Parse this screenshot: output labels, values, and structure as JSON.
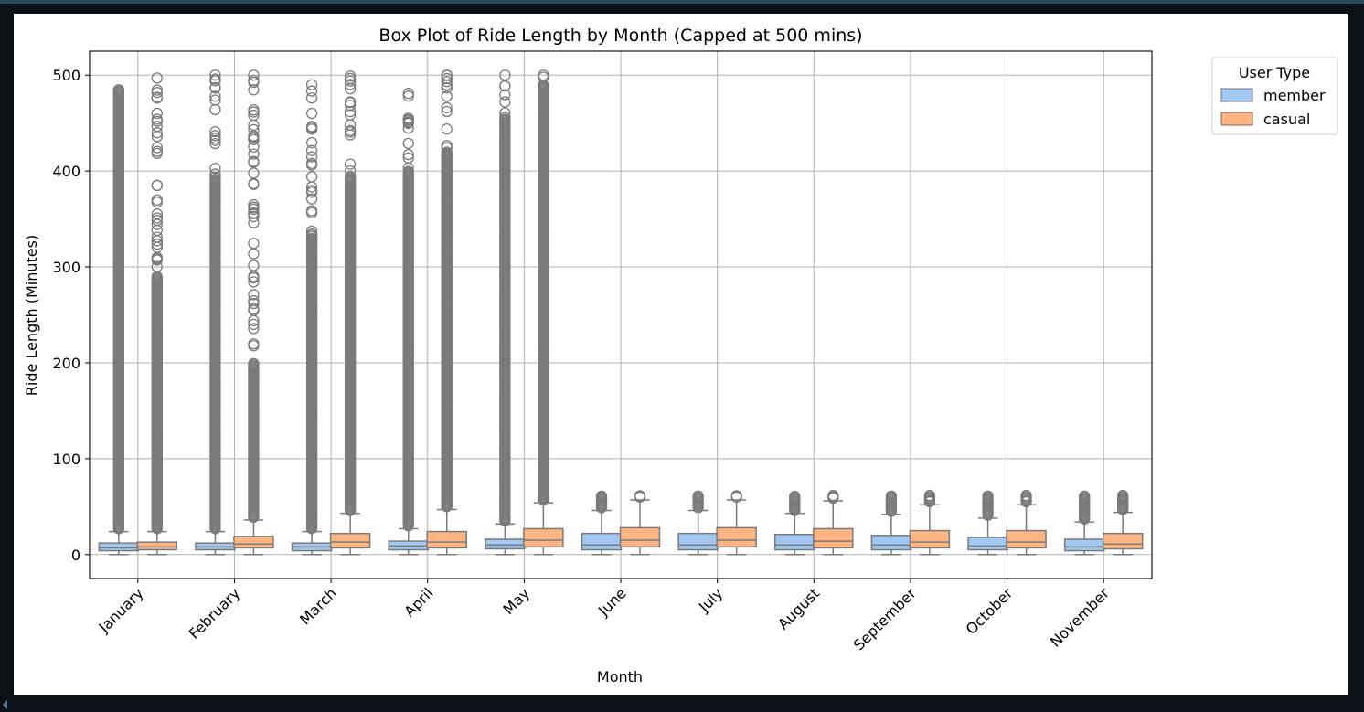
{
  "chart_data": {
    "type": "box",
    "title": "Box Plot of Ride Length by Month (Capped at 500 mins)",
    "xlabel": "Month",
    "ylabel": "Ride Length (Minutes)",
    "ylim": [
      -25,
      525
    ],
    "yticks": [
      0,
      100,
      200,
      300,
      400,
      500
    ],
    "grid": true,
    "legend": {
      "title": "User Type",
      "placement": "outside-top-right"
    },
    "categories": [
      "January",
      "February",
      "March",
      "April",
      "May",
      "June",
      "July",
      "August",
      "September",
      "October",
      "November"
    ],
    "series": [
      {
        "name": "member",
        "color": "#a1c9f4",
        "boxes": [
          {
            "whisker_low": 0,
            "q1": 4,
            "median": 7,
            "q3": 12,
            "whisker_high": 24,
            "outlier_max": 487,
            "dense_outliers_to": 485
          },
          {
            "whisker_low": 0,
            "q1": 5,
            "median": 8,
            "q3": 12,
            "whisker_high": 24,
            "outlier_max": 500,
            "dense_outliers_to": 392
          },
          {
            "whisker_low": 0,
            "q1": 4,
            "median": 8,
            "q3": 12,
            "whisker_high": 24,
            "outlier_max": 490,
            "dense_outliers_to": 330
          },
          {
            "whisker_low": 0,
            "q1": 5,
            "median": 9,
            "q3": 14,
            "whisker_high": 27,
            "outlier_max": 481,
            "dense_outliers_to": 400
          },
          {
            "whisker_low": 0,
            "q1": 6,
            "median": 10,
            "q3": 16,
            "whisker_high": 32,
            "outlier_max": 500,
            "dense_outliers_to": 455
          },
          {
            "whisker_low": 0,
            "q1": 5,
            "median": 10,
            "q3": 22,
            "whisker_high": 46,
            "outlier_max": 62,
            "dense_outliers_to": 62
          },
          {
            "whisker_low": 0,
            "q1": 5,
            "median": 10,
            "q3": 22,
            "whisker_high": 46,
            "outlier_max": 62,
            "dense_outliers_to": 62
          },
          {
            "whisker_low": 0,
            "q1": 5,
            "median": 10,
            "q3": 21,
            "whisker_high": 43,
            "outlier_max": 62,
            "dense_outliers_to": 62
          },
          {
            "whisker_low": 0,
            "q1": 5,
            "median": 10,
            "q3": 20,
            "whisker_high": 42,
            "outlier_max": 62,
            "dense_outliers_to": 62
          },
          {
            "whisker_low": 0,
            "q1": 5,
            "median": 9,
            "q3": 18,
            "whisker_high": 38,
            "outlier_max": 62,
            "dense_outliers_to": 62
          },
          {
            "whisker_low": 0,
            "q1": 4,
            "median": 8,
            "q3": 16,
            "whisker_high": 34,
            "outlier_max": 62,
            "dense_outliers_to": 62
          }
        ]
      },
      {
        "name": "casual",
        "color": "#ffb482",
        "boxes": [
          {
            "whisker_low": 0,
            "q1": 5,
            "median": 8,
            "q3": 13,
            "whisker_high": 24,
            "outlier_max": 497,
            "dense_outliers_to": 290
          },
          {
            "whisker_low": 0,
            "q1": 7,
            "median": 11,
            "q3": 19,
            "whisker_high": 36,
            "outlier_max": 500,
            "dense_outliers_to": 200
          },
          {
            "whisker_low": 0,
            "q1": 7,
            "median": 13,
            "q3": 22,
            "whisker_high": 43,
            "outlier_max": 499,
            "dense_outliers_to": 395
          },
          {
            "whisker_low": 0,
            "q1": 7,
            "median": 13,
            "q3": 24,
            "whisker_high": 47,
            "outlier_max": 500,
            "dense_outliers_to": 420
          },
          {
            "whisker_low": 0,
            "q1": 8,
            "median": 15,
            "q3": 27,
            "whisker_high": 54,
            "outlier_max": 500,
            "dense_outliers_to": 490
          },
          {
            "whisker_low": 0,
            "q1": 8,
            "median": 15,
            "q3": 28,
            "whisker_high": 57,
            "outlier_max": 62,
            "dense_outliers_to": 62
          },
          {
            "whisker_low": 0,
            "q1": 8,
            "median": 15,
            "q3": 28,
            "whisker_high": 57,
            "outlier_max": 62,
            "dense_outliers_to": 62
          },
          {
            "whisker_low": 0,
            "q1": 7,
            "median": 14,
            "q3": 27,
            "whisker_high": 56,
            "outlier_max": 62,
            "dense_outliers_to": 62
          },
          {
            "whisker_low": 0,
            "q1": 7,
            "median": 13,
            "q3": 25,
            "whisker_high": 52,
            "outlier_max": 62,
            "dense_outliers_to": 62
          },
          {
            "whisker_low": 0,
            "q1": 7,
            "median": 13,
            "q3": 25,
            "whisker_high": 52,
            "outlier_max": 62,
            "dense_outliers_to": 62
          },
          {
            "whisker_low": 0,
            "q1": 6,
            "median": 11,
            "q3": 22,
            "whisker_high": 44,
            "outlier_max": 62,
            "dense_outliers_to": 62
          }
        ]
      }
    ]
  }
}
